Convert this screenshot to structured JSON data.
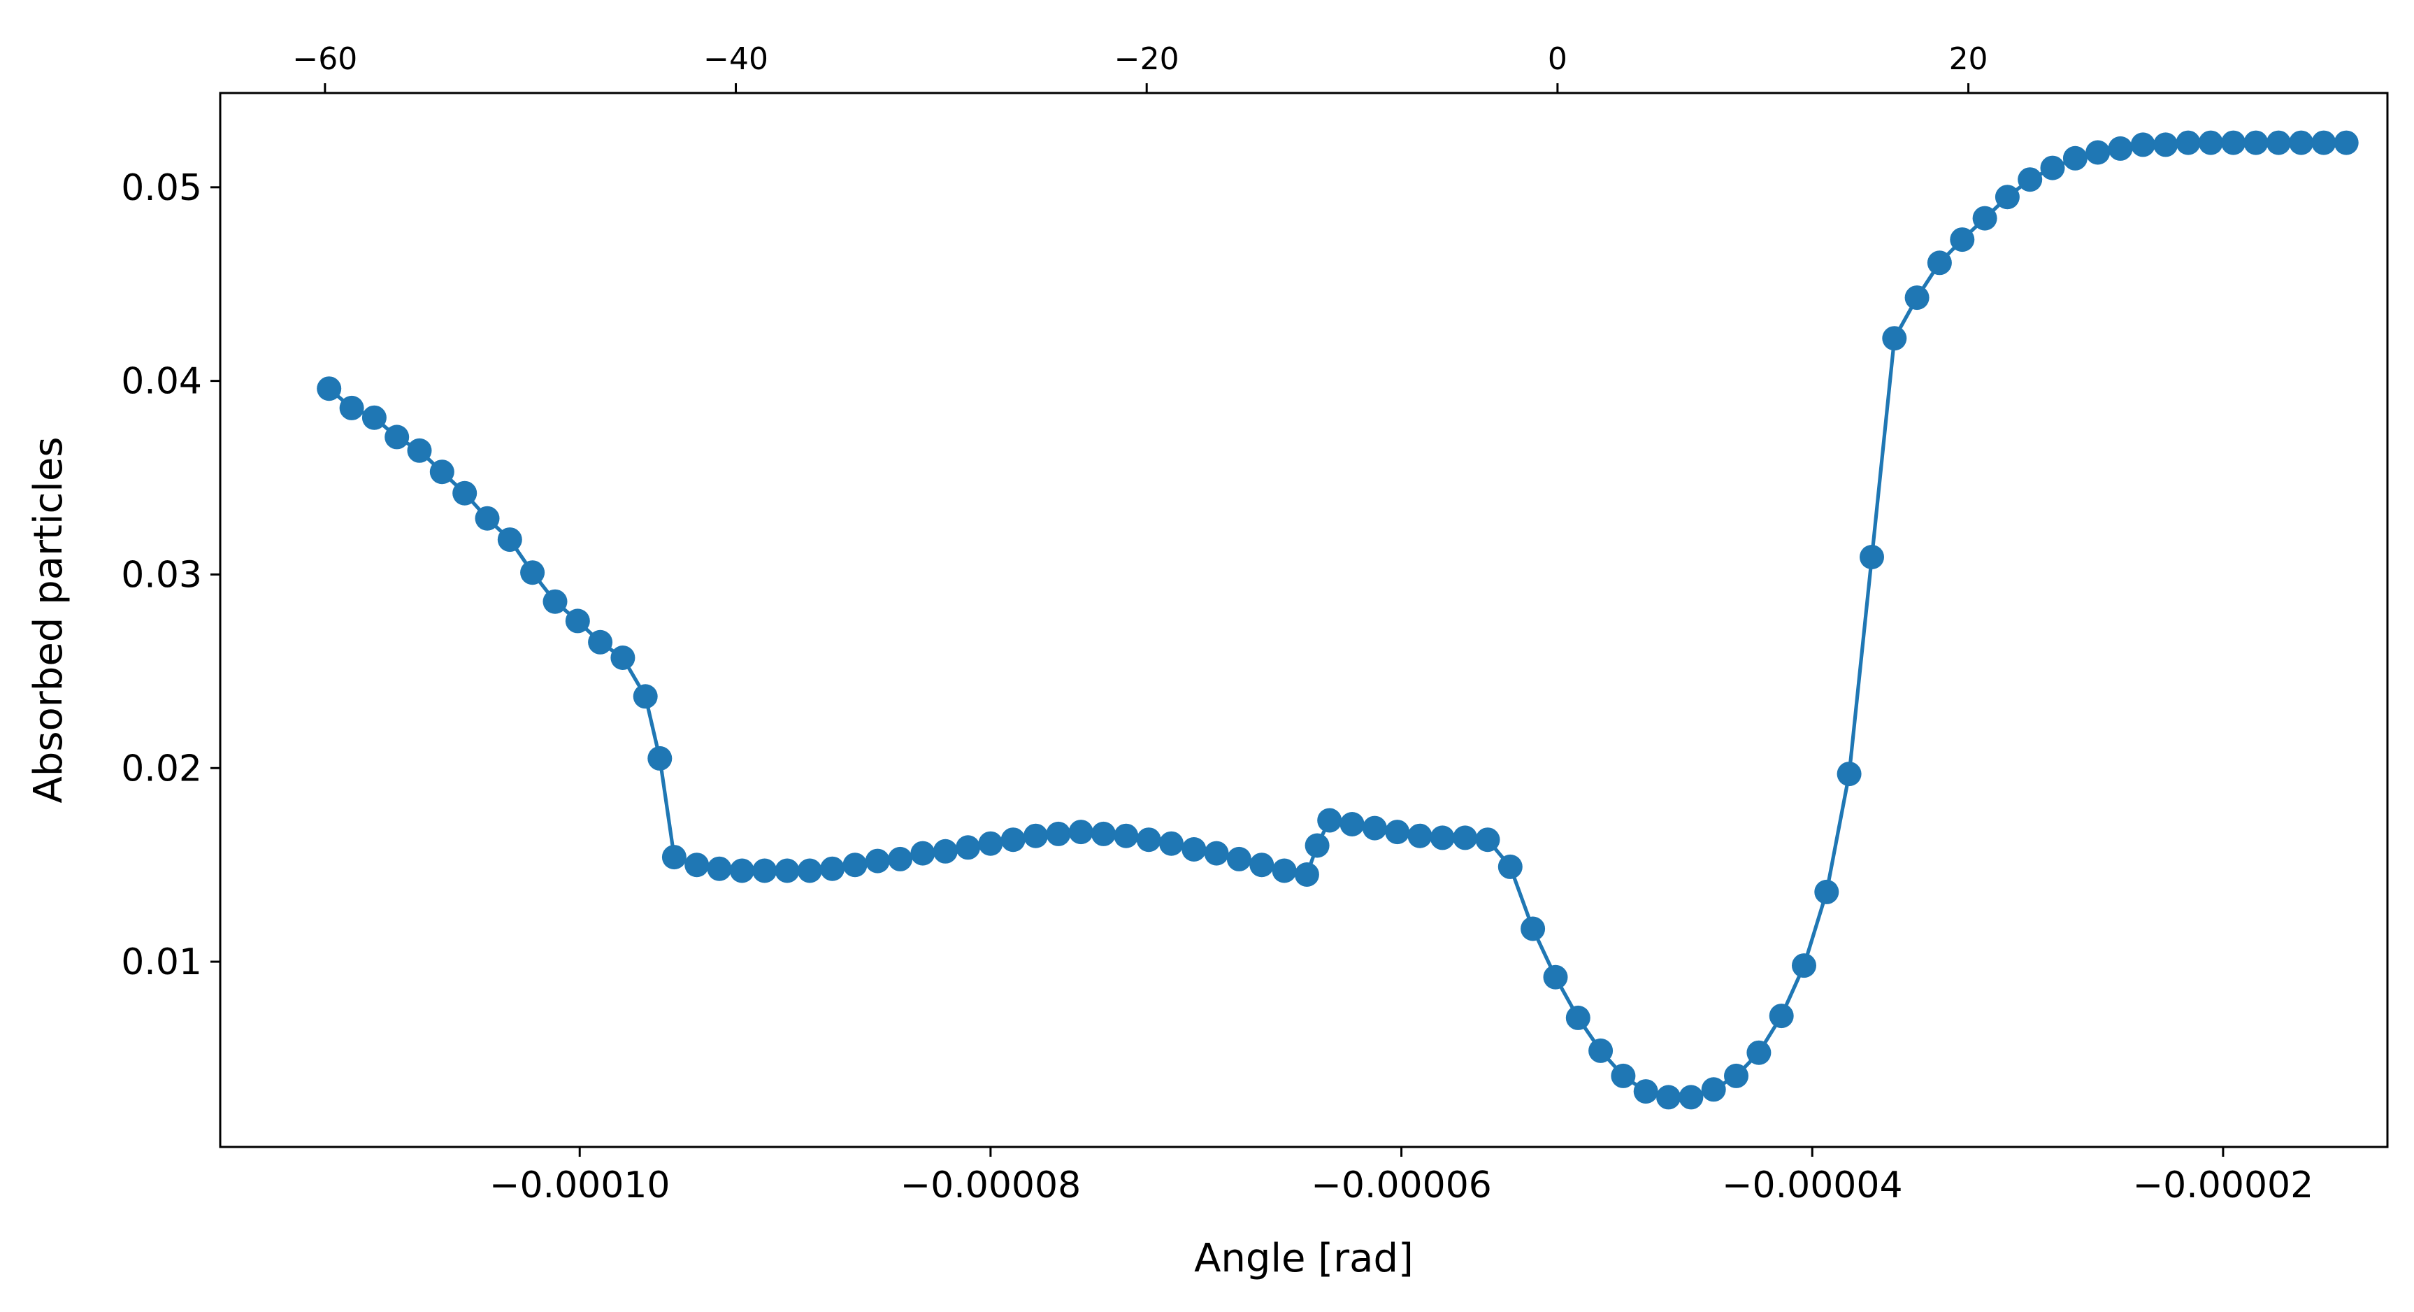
{
  "chart_data": {
    "type": "line",
    "title": "",
    "xlabel": "Angle [rad]",
    "ylabel": "Absorbed particles",
    "xlim": [
      -0.0001175,
      -1.2e-05
    ],
    "ylim": [
      0.00043,
      0.05487
    ],
    "x_ticks": [
      -0.0001,
      -8e-05,
      -6e-05,
      -4e-05,
      -2e-05
    ],
    "x_tick_labels": [
      "−0.00010",
      "−0.00008",
      "−0.00006",
      "−0.00004",
      "−0.00002"
    ],
    "y_ticks": [
      0.01,
      0.02,
      0.03,
      0.04,
      0.05
    ],
    "y_tick_labels": [
      "0.01",
      "0.02",
      "0.03",
      "0.04",
      "0.05"
    ],
    "secondary_x_axis": {
      "position": "top",
      "tick_labels": [
        "−60",
        "−40",
        "−20",
        "0",
        "20"
      ],
      "tick_values_primary_units": [
        -0.0001124,
        -9.24e-05,
        -7.24e-05,
        -5.24e-05,
        -3.24e-05
      ]
    },
    "grid": false,
    "legend": false,
    "series": [
      {
        "color": "#1f77b4",
        "marker": "circle",
        "x": [
          -0.0001122,
          -0.0001111,
          -0.00011,
          -0.0001089,
          -0.0001078,
          -0.0001067,
          -0.0001056,
          -0.0001045,
          -0.0001034,
          -0.0001023,
          -0.0001012,
          -0.0001001,
          -9.9e-05,
          -9.79e-05,
          -9.68e-05,
          -9.61e-05,
          -9.54e-05,
          -9.43e-05,
          -9.32e-05,
          -9.21e-05,
          -9.1e-05,
          -8.99e-05,
          -8.88e-05,
          -8.77e-05,
          -8.66e-05,
          -8.55e-05,
          -8.44e-05,
          -8.33e-05,
          -8.22e-05,
          -8.11e-05,
          -8e-05,
          -7.89e-05,
          -7.78e-05,
          -7.67e-05,
          -7.56e-05,
          -7.45e-05,
          -7.34e-05,
          -7.23e-05,
          -7.12e-05,
          -7.01e-05,
          -6.9e-05,
          -6.79e-05,
          -6.68e-05,
          -6.57e-05,
          -6.46e-05,
          -6.41e-05,
          -6.35e-05,
          -6.24e-05,
          -6.13e-05,
          -6.02e-05,
          -5.91e-05,
          -5.8e-05,
          -5.69e-05,
          -5.58e-05,
          -5.47e-05,
          -5.36e-05,
          -5.25e-05,
          -5.14e-05,
          -5.03e-05,
          -4.92e-05,
          -4.81e-05,
          -4.7e-05,
          -4.59e-05,
          -4.48e-05,
          -4.37e-05,
          -4.26e-05,
          -4.15e-05,
          -4.04e-05,
          -3.93e-05,
          -3.82e-05,
          -3.71e-05,
          -3.6e-05,
          -3.49e-05,
          -3.38e-05,
          -3.27e-05,
          -3.16e-05,
          -3.05e-05,
          -2.94e-05,
          -2.83e-05,
          -2.72e-05,
          -2.61e-05,
          -2.5e-05,
          -2.39e-05,
          -2.28e-05,
          -2.17e-05,
          -2.06e-05,
          -1.95e-05,
          -1.84e-05,
          -1.73e-05,
          -1.62e-05,
          -1.51e-05,
          -1.4e-05
        ],
        "y": [
          0.0396,
          0.0386,
          0.0381,
          0.0371,
          0.0364,
          0.0353,
          0.0342,
          0.0329,
          0.0318,
          0.0301,
          0.0286,
          0.0276,
          0.0265,
          0.0257,
          0.0237,
          0.0205,
          0.0154,
          0.015,
          0.0148,
          0.0147,
          0.0147,
          0.0147,
          0.0147,
          0.0148,
          0.015,
          0.0152,
          0.0153,
          0.0156,
          0.0157,
          0.0159,
          0.0161,
          0.0163,
          0.0165,
          0.0166,
          0.0167,
          0.0166,
          0.0165,
          0.0163,
          0.0161,
          0.0158,
          0.0156,
          0.0153,
          0.015,
          0.0147,
          0.0145,
          0.016,
          0.0173,
          0.0171,
          0.0169,
          0.0167,
          0.0165,
          0.0164,
          0.0164,
          0.0163,
          0.0149,
          0.0117,
          0.0092,
          0.0071,
          0.0054,
          0.0041,
          0.0033,
          0.003,
          0.003,
          0.0034,
          0.0041,
          0.0053,
          0.0072,
          0.0098,
          0.0136,
          0.0197,
          0.0309,
          0.0422,
          0.0443,
          0.0461,
          0.0473,
          0.0484,
          0.0495,
          0.0504,
          0.051,
          0.0515,
          0.0518,
          0.052,
          0.0522,
          0.0522,
          0.0523,
          0.0523,
          0.0523,
          0.0523,
          0.0523,
          0.0523,
          0.0523,
          0.0523
        ]
      }
    ]
  }
}
